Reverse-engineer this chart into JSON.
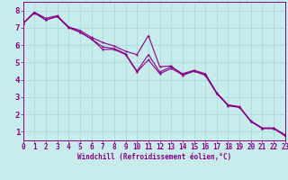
{
  "xlabel": "Windchill (Refroidissement éolien,°C)",
  "background_color": "#c8ecec",
  "grid_color": "#aadddd",
  "line_color": "#880088",
  "x": [
    0,
    1,
    2,
    3,
    4,
    5,
    6,
    7,
    8,
    9,
    10,
    11,
    12,
    13,
    14,
    15,
    16,
    17,
    18,
    19,
    20,
    21,
    22,
    23
  ],
  "line1": [
    7.25,
    7.9,
    7.55,
    7.7,
    7.05,
    6.85,
    6.45,
    6.15,
    5.95,
    5.65,
    5.45,
    6.55,
    4.75,
    4.8,
    4.25,
    4.5,
    4.25,
    3.2,
    2.5,
    2.4,
    1.6,
    1.2,
    1.2,
    0.75
  ],
  "line2": [
    7.25,
    7.85,
    7.45,
    7.65,
    7.0,
    6.75,
    6.35,
    5.9,
    5.8,
    5.5,
    4.5,
    5.45,
    4.45,
    4.75,
    4.35,
    4.55,
    4.35,
    3.25,
    2.55,
    2.45,
    1.62,
    1.22,
    1.22,
    0.82
  ],
  "line3": [
    7.25,
    7.9,
    7.45,
    7.65,
    7.05,
    6.75,
    6.35,
    5.75,
    5.75,
    5.45,
    4.45,
    5.15,
    4.35,
    4.65,
    4.3,
    4.5,
    4.3,
    3.22,
    2.52,
    2.42,
    1.58,
    1.18,
    1.18,
    0.8
  ],
  "xlim": [
    0,
    23
  ],
  "ylim": [
    0.5,
    8.5
  ],
  "xticks": [
    0,
    1,
    2,
    3,
    4,
    5,
    6,
    7,
    8,
    9,
    10,
    11,
    12,
    13,
    14,
    15,
    16,
    17,
    18,
    19,
    20,
    21,
    22,
    23
  ],
  "yticks": [
    1,
    2,
    3,
    4,
    5,
    6,
    7,
    8
  ]
}
